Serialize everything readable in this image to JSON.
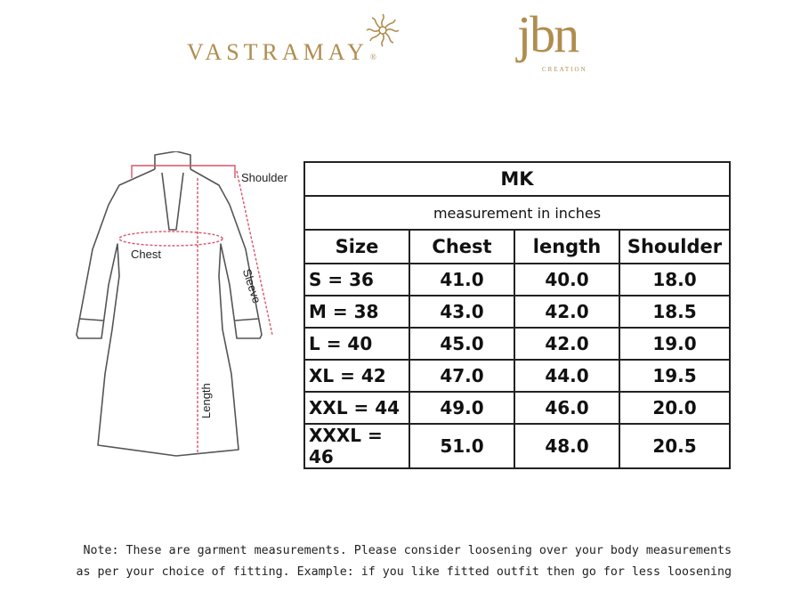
{
  "brands": {
    "left_name": "VASTRAMAY",
    "left_mark": "®",
    "right_name": "jbn",
    "right_subtitle": "CREATION"
  },
  "diagram": {
    "labels": {
      "shoulder": "Shoulder",
      "chest": "Chest",
      "sleeve": "Sleeve",
      "length": "Length"
    }
  },
  "table": {
    "title": "MK",
    "subtitle": "measurement in inches",
    "headers": [
      "Size",
      "Chest",
      "length",
      "Shoulder"
    ],
    "rows": [
      [
        "S = 36",
        "41.0",
        "40.0",
        "18.0"
      ],
      [
        "M = 38",
        "43.0",
        "42.0",
        "18.5"
      ],
      [
        "L = 40",
        "45.0",
        "42.0",
        "19.0"
      ],
      [
        "XL = 42",
        "47.0",
        "44.0",
        "19.5"
      ],
      [
        "XXL = 44",
        "49.0",
        "46.0",
        "20.0"
      ],
      [
        "XXXL = 46",
        "51.0",
        "48.0",
        "20.5"
      ]
    ]
  },
  "note": {
    "line1": "Note: These are garment measurements. Please consider loosening over your body measurements",
    "line2": "as per your choice of fitting. Example: if you like fitted outfit then go for less loosening"
  },
  "colors": {
    "brand_gold": "#b08d4f",
    "measure_line": "#d9536a",
    "garment_outline": "#555555"
  }
}
